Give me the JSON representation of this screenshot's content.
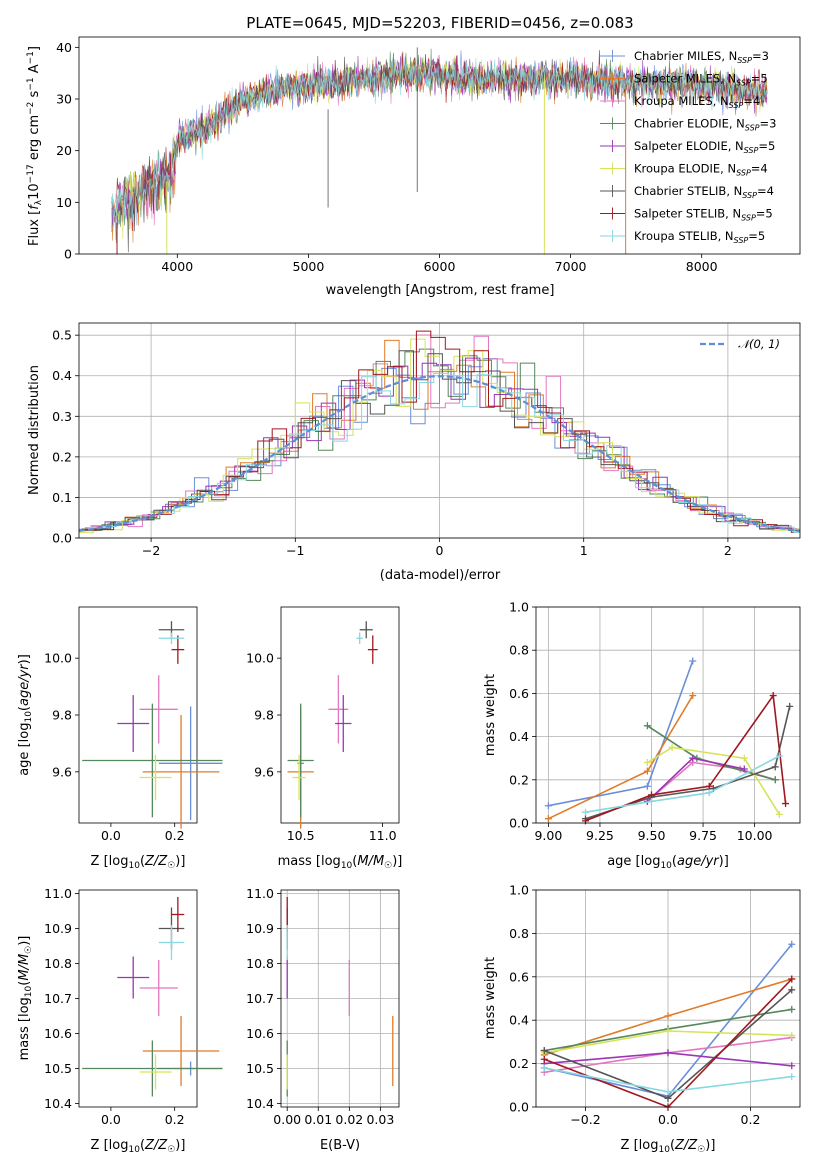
{
  "colors": {
    "chabrier_miles": "#6a8fd8",
    "salpeter_miles": "#e07b2a",
    "kroupa_miles": "#e377c2",
    "chabrier_elodie": "#55885a",
    "salpeter_elodie": "#9b35b5",
    "kroupa_elodie": "#d6e35a",
    "chabrier_stelib": "#555555",
    "salpeter_stelib": "#a01820",
    "kroupa_stelib": "#88d8e0",
    "dashed": "#5b8fd8"
  },
  "chart_data": [
    {
      "type": "line",
      "title": "PLATE=0645, MJD=52203, FIBERID=0456, z=0.083",
      "xlabel": "wavelength [Angstrom, rest frame]",
      "ylabel": "Flux [f_λ 10⁻¹⁷ erg cm⁻² s⁻¹ A⁻¹]",
      "xlim": [
        3250,
        8750
      ],
      "ylim": [
        0,
        42
      ],
      "xticks": [
        "4000",
        "5000",
        "6000",
        "7000",
        "8000"
      ],
      "yticks": [
        "0",
        "10",
        "20",
        "30",
        "40"
      ],
      "legend_position": "right",
      "legend": [
        {
          "label": "Chabrier MILES, N_SSP=3",
          "color": "chabrier_miles"
        },
        {
          "label": "Salpeter MILES, N_SSP=5",
          "color": "salpeter_miles"
        },
        {
          "label": "Kroupa MILES, N_SSP=4",
          "color": "kroupa_miles"
        },
        {
          "label": "Chabrier ELODIE, N_SSP=3",
          "color": "chabrier_elodie"
        },
        {
          "label": "Salpeter ELODIE, N_SSP=5",
          "color": "salpeter_elodie"
        },
        {
          "label": "Kroupa ELODIE, N_SSP=4",
          "color": "kroupa_elodie"
        },
        {
          "label": "Chabrier STELIB, N_SSP=4",
          "color": "chabrier_stelib"
        },
        {
          "label": "Salpeter STELIB, N_SSP=5",
          "color": "salpeter_stelib"
        },
        {
          "label": "Kroupa STELIB, N_SSP=5",
          "color": "kroupa_stelib"
        }
      ],
      "continuum": [
        [
          3500,
          9
        ],
        [
          3650,
          11
        ],
        [
          3800,
          14
        ],
        [
          3950,
          16
        ],
        [
          4000,
          22
        ],
        [
          4200,
          24
        ],
        [
          4300,
          26
        ],
        [
          4500,
          30
        ],
        [
          4800,
          32
        ],
        [
          5200,
          33
        ],
        [
          5500,
          34
        ],
        [
          5800,
          35
        ],
        [
          6200,
          34
        ],
        [
          6600,
          34
        ],
        [
          7000,
          34
        ],
        [
          7400,
          33
        ],
        [
          7800,
          33
        ],
        [
          8200,
          32
        ],
        [
          8500,
          31
        ]
      ]
    },
    {
      "type": "line",
      "xlabel": "(data-model)/error",
      "ylabel": "Normed distribution",
      "xlim": [
        -2.5,
        2.5
      ],
      "ylim": [
        0,
        0.53
      ],
      "xticks": [
        "−2",
        "−1",
        "0",
        "1",
        "2"
      ],
      "yticks": [
        "0.0",
        "0.1",
        "0.2",
        "0.3",
        "0.4",
        "0.5"
      ],
      "grid": true,
      "legend_position": "top-right",
      "legend": [
        {
          "label": "𝒩(0, 1)",
          "style": "dashed"
        }
      ]
    },
    {
      "type": "scatter",
      "xlabel": "Z [log₁₀(Z/Z☉)]",
      "ylabel": "age  [log₁₀(age/yr)]",
      "xlim": [
        -0.1,
        0.27
      ],
      "ylim": [
        9.42,
        10.18
      ],
      "xticks": [
        "0.0",
        "0.2"
      ],
      "yticks": [
        "9.6",
        "9.8",
        "10.0"
      ],
      "points": [
        {
          "model": "chabrier_miles",
          "x": 0.25,
          "y": 9.63,
          "xerr": 0.1,
          "yerr": 0.2
        },
        {
          "model": "salpeter_miles",
          "x": 0.22,
          "y": 9.6,
          "xerr": 0.12,
          "yerr": 0.2
        },
        {
          "model": "kroupa_miles",
          "x": 0.15,
          "y": 9.82,
          "xerr": 0.06,
          "yerr": 0.12
        },
        {
          "model": "chabrier_elodie",
          "x": 0.13,
          "y": 9.64,
          "xerr": 0.22,
          "yerr": 0.2
        },
        {
          "model": "salpeter_elodie",
          "x": 0.07,
          "y": 9.77,
          "xerr": 0.05,
          "yerr": 0.1
        },
        {
          "model": "kroupa_elodie",
          "x": 0.14,
          "y": 9.58,
          "xerr": 0.05,
          "yerr": 0.08
        },
        {
          "model": "chabrier_stelib",
          "x": 0.19,
          "y": 10.1,
          "xerr": 0.04,
          "yerr": 0.03
        },
        {
          "model": "salpeter_stelib",
          "x": 0.21,
          "y": 10.03,
          "xerr": 0.02,
          "yerr": 0.05
        },
        {
          "model": "kroupa_stelib",
          "x": 0.19,
          "y": 10.07,
          "xerr": 0.04,
          "yerr": 0.02
        }
      ]
    },
    {
      "type": "scatter",
      "xlabel": "mass [log₁₀(M/M☉)]",
      "ylabel": "",
      "xlim": [
        10.38,
        11.1
      ],
      "ylim": [
        9.42,
        10.18
      ],
      "xticks": [
        "10.5",
        "11.0"
      ],
      "yticks": [
        "9.6",
        "9.8",
        "10.0"
      ]
    },
    {
      "type": "line",
      "xlabel": "age  [log₁₀(age/yr)]",
      "ylabel": "mass weight",
      "xlim": [
        8.94,
        10.22
      ],
      "ylim": [
        0,
        1
      ],
      "xticks": [
        "9.00",
        "9.25",
        "9.50",
        "9.75",
        "10.00"
      ],
      "yticks": [
        "0.0",
        "0.2",
        "0.4",
        "0.6",
        "0.8",
        "1.0"
      ],
      "grid": true,
      "series": [
        {
          "model": "chabrier_miles",
          "x": [
            9.0,
            9.48,
            9.7
          ],
          "y": [
            0.08,
            0.17,
            0.75
          ]
        },
        {
          "model": "salpeter_miles",
          "x": [
            9.0,
            9.48,
            9.7
          ],
          "y": [
            0.02,
            0.24,
            0.59
          ]
        },
        {
          "model": "kroupa_miles",
          "x": [
            9.48,
            9.7,
            9.93,
            10.1
          ],
          "y": [
            0.1,
            0.28,
            0.25,
            0.2
          ]
        },
        {
          "model": "chabrier_elodie",
          "x": [
            9.48,
            9.72,
            10.1
          ],
          "y": [
            0.45,
            0.3,
            0.2
          ]
        },
        {
          "model": "salpeter_elodie",
          "x": [
            9.48,
            9.7,
            9.95
          ],
          "y": [
            0.1,
            0.3,
            0.25
          ]
        },
        {
          "model": "kroupa_elodie",
          "x": [
            9.48,
            9.6,
            9.95,
            10.12
          ],
          "y": [
            0.28,
            0.35,
            0.3,
            0.04
          ]
        },
        {
          "model": "chabrier_stelib",
          "x": [
            9.18,
            9.5,
            9.8,
            10.1,
            10.17
          ],
          "y": [
            0.02,
            0.12,
            0.16,
            0.26,
            0.54
          ]
        },
        {
          "model": "salpeter_stelib",
          "x": [
            9.18,
            9.5,
            9.78,
            10.09,
            10.15
          ],
          "y": [
            0.01,
            0.13,
            0.17,
            0.59,
            0.09
          ]
        },
        {
          "model": "kroupa_stelib",
          "x": [
            9.18,
            9.5,
            9.78,
            10.12
          ],
          "y": [
            0.05,
            0.1,
            0.14,
            0.31
          ]
        }
      ]
    },
    {
      "type": "scatter",
      "xlabel": "Z [log₁₀(Z/Z☉)]",
      "ylabel": "mass [log₁₀(M/M☉)]",
      "xlim": [
        -0.1,
        0.27
      ],
      "ylim": [
        10.39,
        11.01
      ],
      "xticks": [
        "0.0",
        "0.2"
      ],
      "yticks": [
        "10.4",
        "10.5",
        "10.6",
        "10.7",
        "10.8",
        "10.9",
        "11.0"
      ]
    },
    {
      "type": "scatter",
      "xlabel": "E(B-V)",
      "ylabel": "",
      "xlim": [
        -0.002,
        0.036
      ],
      "ylim": [
        10.39,
        11.01
      ],
      "xticks": [
        "0.00",
        "0.01",
        "0.02",
        "0.03"
      ],
      "yticks": [
        "10.4",
        "10.5",
        "10.6",
        "10.7",
        "10.8",
        "10.9",
        "11.0"
      ],
      "grid": true,
      "points": [
        {
          "model": "chabrier_miles",
          "x": 0.0,
          "y": 10.5,
          "yerr": 0.02
        },
        {
          "model": "salpeter_miles",
          "x": 0.034,
          "y": 10.55,
          "yerr": 0.1
        },
        {
          "model": "kroupa_miles",
          "x": 0.02,
          "y": 10.73,
          "yerr": 0.08
        },
        {
          "model": "chabrier_elodie",
          "x": 0.0,
          "y": 10.5,
          "yerr": 0.08
        },
        {
          "model": "salpeter_elodie",
          "x": 0.0,
          "y": 10.76,
          "yerr": 0.06
        },
        {
          "model": "kroupa_elodie",
          "x": 0.0,
          "y": 10.49,
          "yerr": 0.05
        },
        {
          "model": "chabrier_stelib",
          "x": 0.0,
          "y": 10.9,
          "yerr": 0.06
        },
        {
          "model": "salpeter_stelib",
          "x": 0.0,
          "y": 10.94,
          "yerr": 0.05
        },
        {
          "model": "kroupa_stelib",
          "x": 0.0,
          "y": 10.86,
          "yerr": 0.05
        }
      ]
    },
    {
      "type": "line",
      "xlabel": "Z [log₁₀(Z/Z☉)]",
      "ylabel": "mass weight",
      "xlim": [
        -0.32,
        0.32
      ],
      "ylim": [
        0,
        1
      ],
      "xticks": [
        "−0.2",
        "0.0",
        "0.2"
      ],
      "yticks": [
        "0.0",
        "0.2",
        "0.4",
        "0.6",
        "0.8",
        "1.0"
      ],
      "grid": true,
      "series": [
        {
          "model": "chabrier_miles",
          "x": [
            -0.3,
            0.0,
            0.3
          ],
          "y": [
            0.18,
            0.05,
            0.75
          ]
        },
        {
          "model": "salpeter_miles",
          "x": [
            -0.3,
            0.0,
            0.3
          ],
          "y": [
            0.24,
            0.42,
            0.59
          ]
        },
        {
          "model": "kroupa_miles",
          "x": [
            -0.3,
            0.0,
            0.3
          ],
          "y": [
            0.16,
            0.25,
            0.32
          ]
        },
        {
          "model": "chabrier_elodie",
          "x": [
            -0.3,
            0.0,
            0.3
          ],
          "y": [
            0.26,
            0.36,
            0.45
          ]
        },
        {
          "model": "salpeter_elodie",
          "x": [
            -0.3,
            0.0,
            0.3
          ],
          "y": [
            0.2,
            0.25,
            0.19
          ]
        },
        {
          "model": "kroupa_elodie",
          "x": [
            -0.3,
            0.0,
            0.3
          ],
          "y": [
            0.25,
            0.35,
            0.33
          ]
        },
        {
          "model": "chabrier_stelib",
          "x": [
            -0.3,
            0.0,
            0.3
          ],
          "y": [
            0.26,
            0.04,
            0.54
          ]
        },
        {
          "model": "salpeter_stelib",
          "x": [
            -0.3,
            0.0,
            0.3
          ],
          "y": [
            0.22,
            0.0,
            0.59
          ]
        },
        {
          "model": "kroupa_stelib",
          "x": [
            -0.3,
            0.0,
            0.3
          ],
          "y": [
            0.18,
            0.07,
            0.14
          ]
        }
      ]
    }
  ]
}
